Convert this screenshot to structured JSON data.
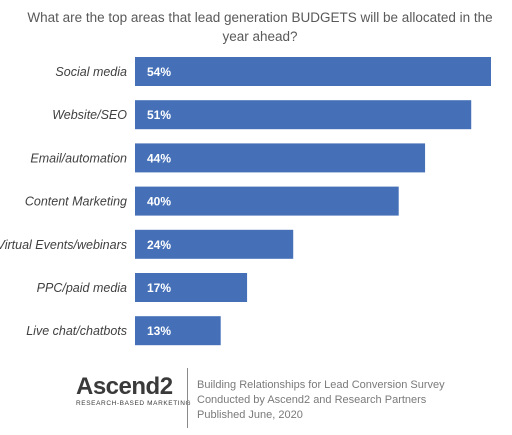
{
  "chart_data": {
    "type": "bar",
    "orientation": "horizontal",
    "title": "What are the top areas that lead generation BUDGETS will be allocated in the year ahead?",
    "categories": [
      "Social media",
      "Website/SEO",
      "Email/automation",
      "Content Marketing",
      "Virtual Events/webinars",
      "PPC/paid media",
      "Live chat/chatbots"
    ],
    "values": [
      54,
      51,
      44,
      40,
      24,
      17,
      13
    ],
    "value_labels": [
      "54%",
      "51%",
      "44%",
      "40%",
      "24%",
      "17%",
      "13%"
    ],
    "xlim": [
      0,
      54
    ],
    "grid": false,
    "bar_color": "#4570b8"
  },
  "footer": {
    "logo_text": "Ascend2",
    "logo_tagline": "RESEARCH-BASED MARKETING",
    "credit_lines": [
      "Building Relationships for Lead Conversion Survey",
      "Conducted by Ascend2 and Research Partners",
      "Published June, 2020"
    ]
  }
}
